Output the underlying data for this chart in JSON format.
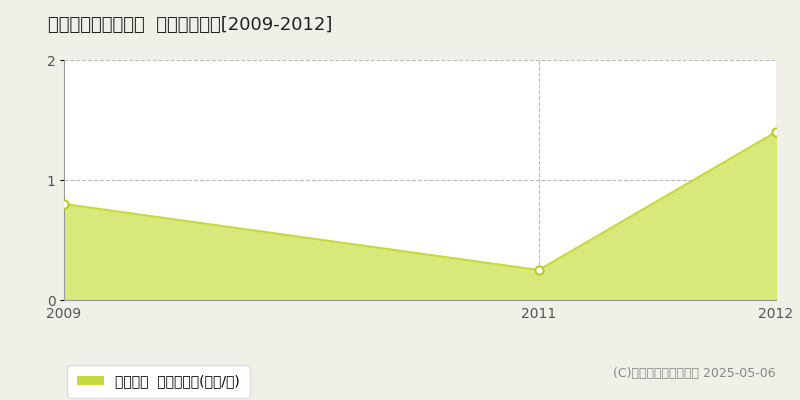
{
  "title": "北設楽郡東栄町三輪  土地価格推移[2009-2012]",
  "x_values": [
    2009,
    2011,
    2012
  ],
  "y_values": [
    0.8,
    0.25,
    1.4
  ],
  "line_color": "#c8d940",
  "fill_color": "#d9e87a",
  "fill_alpha": 1.0,
  "marker_facecolor": "white",
  "marker_edgecolor": "#b8cc20",
  "ylim": [
    0,
    2
  ],
  "yticks": [
    0,
    1,
    2
  ],
  "xticks": [
    2009,
    2011,
    2012
  ],
  "xlim_left": 2009,
  "xlim_right": 2012,
  "grid_color": "#bbbbbb",
  "grid_style": "--",
  "fig_bg_color": "#f0efe8",
  "plot_bg_color": "#ffffff",
  "legend_label": "土地価格  平均坪単価(万円/坪)",
  "legend_color": "#c8d940",
  "copyright_text": "(C)土地価格ドットコム 2025-05-06",
  "title_fontsize": 13,
  "tick_fontsize": 10,
  "legend_fontsize": 10,
  "copyright_fontsize": 9
}
